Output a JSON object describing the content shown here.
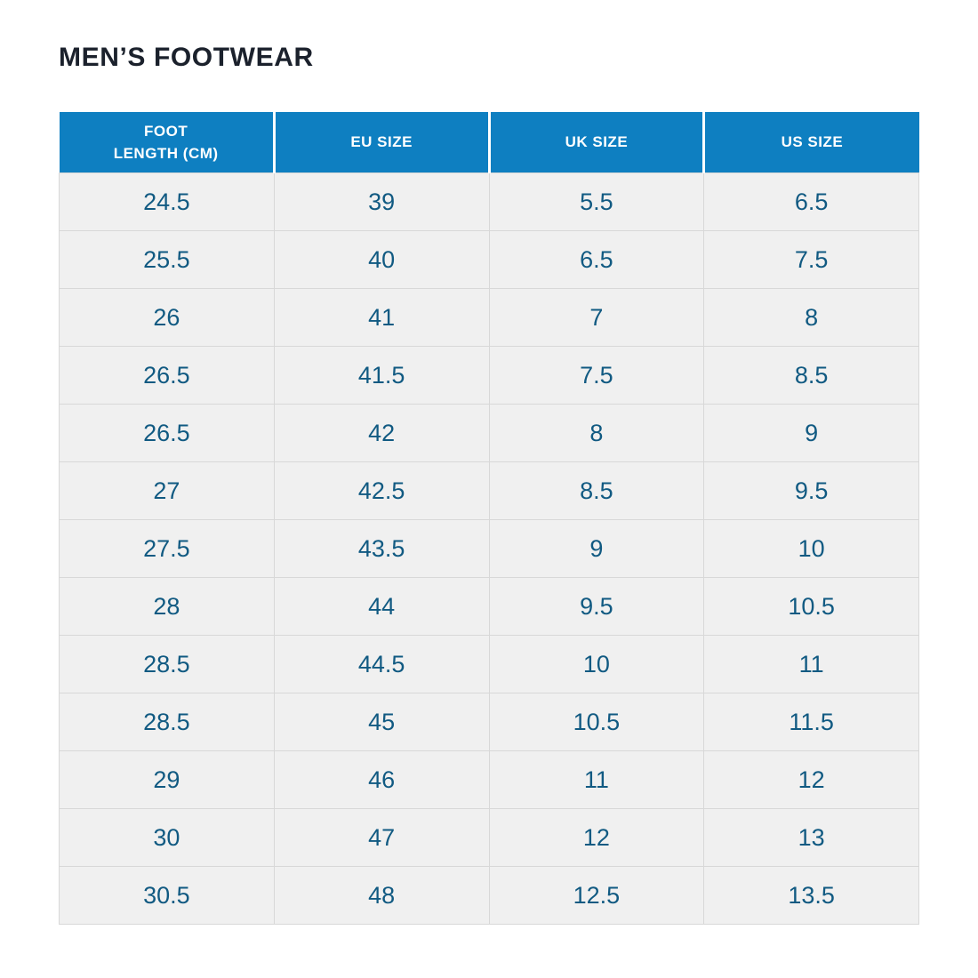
{
  "page_title": "MEN’S FOOTWEAR",
  "colors": {
    "header_background": "#0e7fc1",
    "header_text": "#ffffff",
    "cell_background": "#f0f0f0",
    "cell_text": "#115a82",
    "grid_line": "#d8d8d8",
    "title_text": "#1b212c",
    "page_background": "#ffffff"
  },
  "table": {
    "headers": [
      "FOOT\nLENGTH (CM)",
      "EU SIZE",
      "UK SIZE",
      "US SIZE"
    ],
    "header_names": [
      "foot-length-cm",
      "eu-size",
      "uk-size",
      "us-size"
    ],
    "rows": [
      [
        "24.5",
        "39",
        "5.5",
        "6.5"
      ],
      [
        "25.5",
        "40",
        "6.5",
        "7.5"
      ],
      [
        "26",
        "41",
        "7",
        "8"
      ],
      [
        "26.5",
        "41.5",
        "7.5",
        "8.5"
      ],
      [
        "26.5",
        "42",
        "8",
        "9"
      ],
      [
        "27",
        "42.5",
        "8.5",
        "9.5"
      ],
      [
        "27.5",
        "43.5",
        "9",
        "10"
      ],
      [
        "28",
        "44",
        "9.5",
        "10.5"
      ],
      [
        "28.5",
        "44.5",
        "10",
        "11"
      ],
      [
        "28.5",
        "45",
        "10.5",
        "11.5"
      ],
      [
        "29",
        "46",
        "11",
        "12"
      ],
      [
        "30",
        "47",
        "12",
        "13"
      ],
      [
        "30.5",
        "48",
        "12.5",
        "13.5"
      ]
    ]
  },
  "chart_data": {
    "type": "table",
    "title": "MEN’S FOOTWEAR",
    "columns": [
      "FOOT LENGTH (CM)",
      "EU SIZE",
      "UK SIZE",
      "US SIZE"
    ],
    "rows": [
      [
        "24.5",
        "39",
        "5.5",
        "6.5"
      ],
      [
        "25.5",
        "40",
        "6.5",
        "7.5"
      ],
      [
        "26",
        "41",
        "7",
        "8"
      ],
      [
        "26.5",
        "41.5",
        "7.5",
        "8.5"
      ],
      [
        "26.5",
        "42",
        "8",
        "9"
      ],
      [
        "27",
        "42.5",
        "8.5",
        "9.5"
      ],
      [
        "27.5",
        "43.5",
        "9",
        "10"
      ],
      [
        "28",
        "44",
        "9.5",
        "10.5"
      ],
      [
        "28.5",
        "44.5",
        "10",
        "11"
      ],
      [
        "28.5",
        "45",
        "10.5",
        "11.5"
      ],
      [
        "29",
        "46",
        "11",
        "12"
      ],
      [
        "30",
        "47",
        "12",
        "13"
      ],
      [
        "30.5",
        "48",
        "12.5",
        "13.5"
      ]
    ]
  }
}
